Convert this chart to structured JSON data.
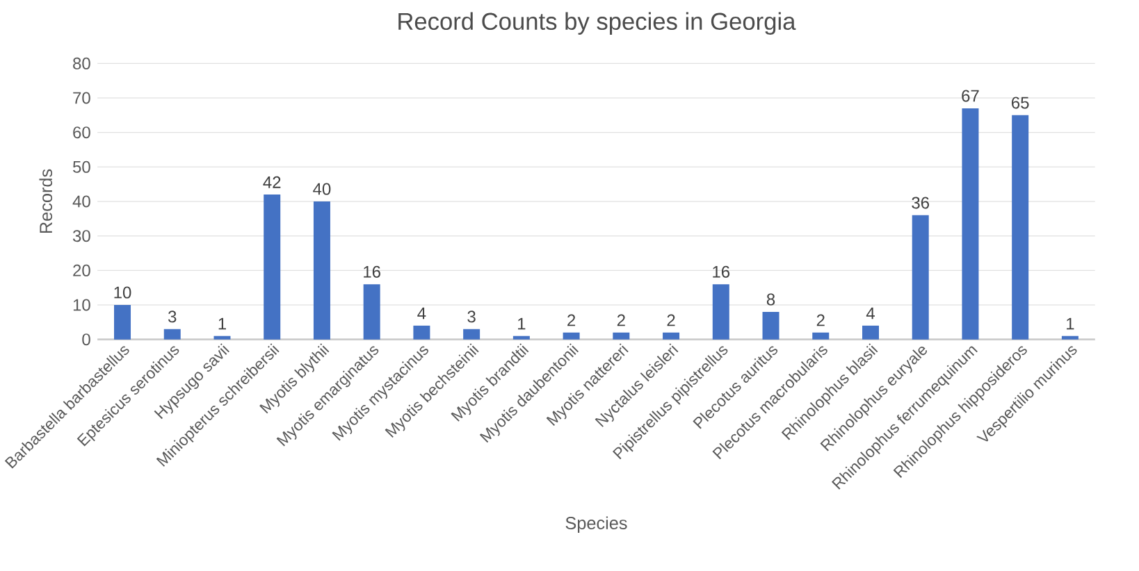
{
  "chart_data": {
    "type": "bar",
    "title": "Record Counts by species in Georgia",
    "xlabel": "Species",
    "ylabel": "Records",
    "categories": [
      "Barbastella barbastellus",
      "Eptesicus serotinus",
      "Hypsugo savii",
      "Miniopterus schreibersii",
      "Myotis  blythii",
      "Myotis  emarginatus",
      "Myotis  mystacinus",
      "Myotis bechsteinii",
      "Myotis brandtii",
      "Myotis daubentonii",
      "Myotis nattereri",
      "Nyctalus  leisleri",
      "Pipistrellus pipistrellus",
      "Plecotus auritus",
      "Plecotus macrobularis",
      "Rhinolophus blasii",
      "Rhinolophus euryale",
      "Rhinolophus ferrumequinum",
      "Rhinolophus hipposideros",
      "Vespertilio murinus"
    ],
    "values": [
      10,
      3,
      1,
      42,
      40,
      16,
      4,
      3,
      1,
      2,
      2,
      2,
      16,
      8,
      2,
      4,
      36,
      67,
      65,
      1
    ],
    "color": "#4472c4",
    "ylim": [
      0,
      80
    ],
    "yticks": [
      0,
      10,
      20,
      30,
      40,
      50,
      60,
      70,
      80
    ],
    "grid": "y",
    "data_labels": true
  }
}
